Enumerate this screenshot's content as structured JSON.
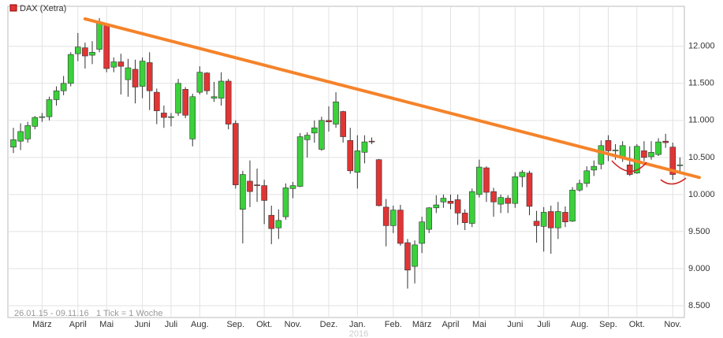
{
  "chart_data": {
    "type": "candlestick",
    "legend_label": "DAX (Xetra)",
    "annotations": [
      "26.01.15 - 09.11.16",
      "1 Tick = 1 Woche"
    ],
    "year_label": "2016",
    "categories": [
      null,
      null,
      null,
      null,
      "März",
      null,
      null,
      null,
      null,
      "April",
      null,
      null,
      null,
      "Mai",
      null,
      null,
      null,
      null,
      "Juni",
      null,
      null,
      null,
      "Juli",
      null,
      null,
      null,
      "Aug.",
      null,
      null,
      null,
      null,
      "Sep.",
      null,
      null,
      null,
      "Okt.",
      null,
      null,
      null,
      "Nov.",
      null,
      null,
      null,
      null,
      "Dez.",
      null,
      null,
      null,
      "Jan.",
      null,
      null,
      null,
      null,
      "Feb.",
      null,
      null,
      null,
      "März",
      null,
      null,
      null,
      "April",
      null,
      null,
      null,
      "Mai",
      null,
      null,
      null,
      null,
      "Juni",
      null,
      null,
      null,
      "Juli",
      null,
      null,
      null,
      null,
      "Aug.",
      null,
      null,
      null,
      "Sep.",
      null,
      null,
      null,
      "Okt.",
      null,
      null,
      null,
      null,
      "Nov.",
      null
    ],
    "series": [
      {
        "name": "DAX (Xetra)",
        "up_color": "#3ad13a",
        "down_color": "#e03535",
        "open": [
          10640,
          10720,
          10750,
          10920,
          11040,
          11050,
          11280,
          11400,
          11500,
          11900,
          11980,
          11880,
          11960,
          12290,
          11720,
          11790,
          11550,
          11690,
          11460,
          11780,
          11380,
          11100,
          11040,
          11100,
          11420,
          10750,
          11380,
          11640,
          11300,
          11300,
          11530,
          10960,
          9800,
          10180,
          10130,
          10120,
          9720,
          9550,
          9700,
          10080,
          10110,
          10740,
          10830,
          10610,
          11000,
          10950,
          11120,
          10730,
          10300,
          10570,
          10720,
          10470,
          9830,
          9580,
          9790,
          9350,
          9030,
          9340,
          9530,
          9820,
          9900,
          9910,
          9930,
          9750,
          9610,
          10000,
          10360,
          10040,
          9870,
          9950,
          9880,
          10240,
          10290,
          9640,
          9570,
          9770,
          9550,
          9760,
          9640,
          10060,
          10150,
          10330,
          10410,
          10730,
          10590,
          10510,
          10400,
          10290,
          10590,
          10510,
          10540,
          10720,
          10640,
          10400
        ],
        "high": [
          10900,
          10960,
          10980,
          11060,
          11100,
          11320,
          11460,
          11600,
          11920,
          12180,
          12050,
          12070,
          12380,
          12310,
          11850,
          11900,
          11830,
          11820,
          11850,
          11920,
          11430,
          11200,
          11100,
          11560,
          11450,
          11360,
          11730,
          11650,
          11520,
          11650,
          11560,
          11000,
          10320,
          10460,
          10350,
          10200,
          9850,
          9800,
          10150,
          10170,
          10830,
          10840,
          11000,
          11050,
          11190,
          11380,
          11130,
          10900,
          10800,
          10800,
          10770,
          10480,
          9940,
          9850,
          9860,
          9400,
          9380,
          9700,
          9830,
          9990,
          10000,
          10000,
          10000,
          9800,
          10080,
          10470,
          10380,
          10090,
          10000,
          9990,
          10300,
          10330,
          10320,
          9780,
          9830,
          9850,
          9900,
          9840,
          10100,
          10200,
          10380,
          10460,
          10730,
          10800,
          10680,
          10720,
          10650,
          10680,
          10720,
          10720,
          10760,
          10820,
          10700,
          10500
        ],
        "low": [
          10560,
          10600,
          10700,
          10880,
          10980,
          11000,
          11200,
          11340,
          11460,
          11800,
          11700,
          11760,
          11920,
          11650,
          11650,
          11350,
          11320,
          11230,
          11300,
          11140,
          10950,
          10900,
          10920,
          11060,
          11030,
          10650,
          11350,
          11350,
          11250,
          11200,
          10880,
          10080,
          9340,
          9830,
          9900,
          9600,
          9330,
          9400,
          9660,
          9950,
          10100,
          10500,
          10700,
          10590,
          10850,
          10900,
          10700,
          10280,
          10080,
          10420,
          10680,
          9840,
          9300,
          9480,
          9310,
          8730,
          8800,
          9210,
          9480,
          9750,
          9820,
          9800,
          9590,
          9520,
          9560,
          9960,
          9900,
          9700,
          9750,
          9750,
          9820,
          10100,
          9720,
          9350,
          9230,
          9200,
          9400,
          9560,
          9630,
          10040,
          10100,
          10250,
          10340,
          10450,
          10470,
          10440,
          10250,
          10280,
          10450,
          10470,
          10520,
          10630,
          10200,
          10300
        ],
        "close": [
          10740,
          10850,
          10930,
          11040,
          11050,
          11280,
          11400,
          11500,
          11890,
          11990,
          11870,
          11920,
          12330,
          11700,
          11790,
          11730,
          11710,
          11450,
          11800,
          11400,
          11130,
          11040,
          11050,
          11500,
          11070,
          11320,
          11650,
          11400,
          11320,
          11530,
          10950,
          10130,
          10270,
          10040,
          10120,
          9920,
          9540,
          9650,
          10090,
          10120,
          10780,
          10800,
          10900,
          11000,
          10980,
          11250,
          10780,
          10320,
          10590,
          10710,
          10710,
          9850,
          9580,
          9790,
          9340,
          8980,
          9320,
          9630,
          9820,
          9860,
          9950,
          9880,
          9750,
          9620,
          10040,
          10370,
          10030,
          9900,
          9960,
          9880,
          10240,
          10300,
          9840,
          9580,
          9760,
          9550,
          9770,
          9630,
          10060,
          10150,
          10320,
          10380,
          10660,
          10590,
          10600,
          10660,
          10270,
          10650,
          10500,
          10570,
          10710,
          10700,
          10270,
          10400
        ]
      }
    ],
    "trendline": {
      "color": "#f5832a",
      "x": [
        10,
        95.7
      ],
      "values": [
        12370,
        10230
      ]
    },
    "ylim": [
      8340,
      12540
    ],
    "yticks": [
      {
        "value": 8500,
        "label": "8.500"
      },
      {
        "value": 9000,
        "label": "9.000"
      },
      {
        "value": 9500,
        "label": "9.500"
      },
      {
        "value": 10000,
        "label": "10.000"
      },
      {
        "value": 10500,
        "label": "10.500"
      },
      {
        "value": 11000,
        "label": "11.000"
      },
      {
        "value": 11500,
        "label": "11.500"
      },
      {
        "value": 12000,
        "label": "12.000"
      }
    ],
    "grid": true
  }
}
